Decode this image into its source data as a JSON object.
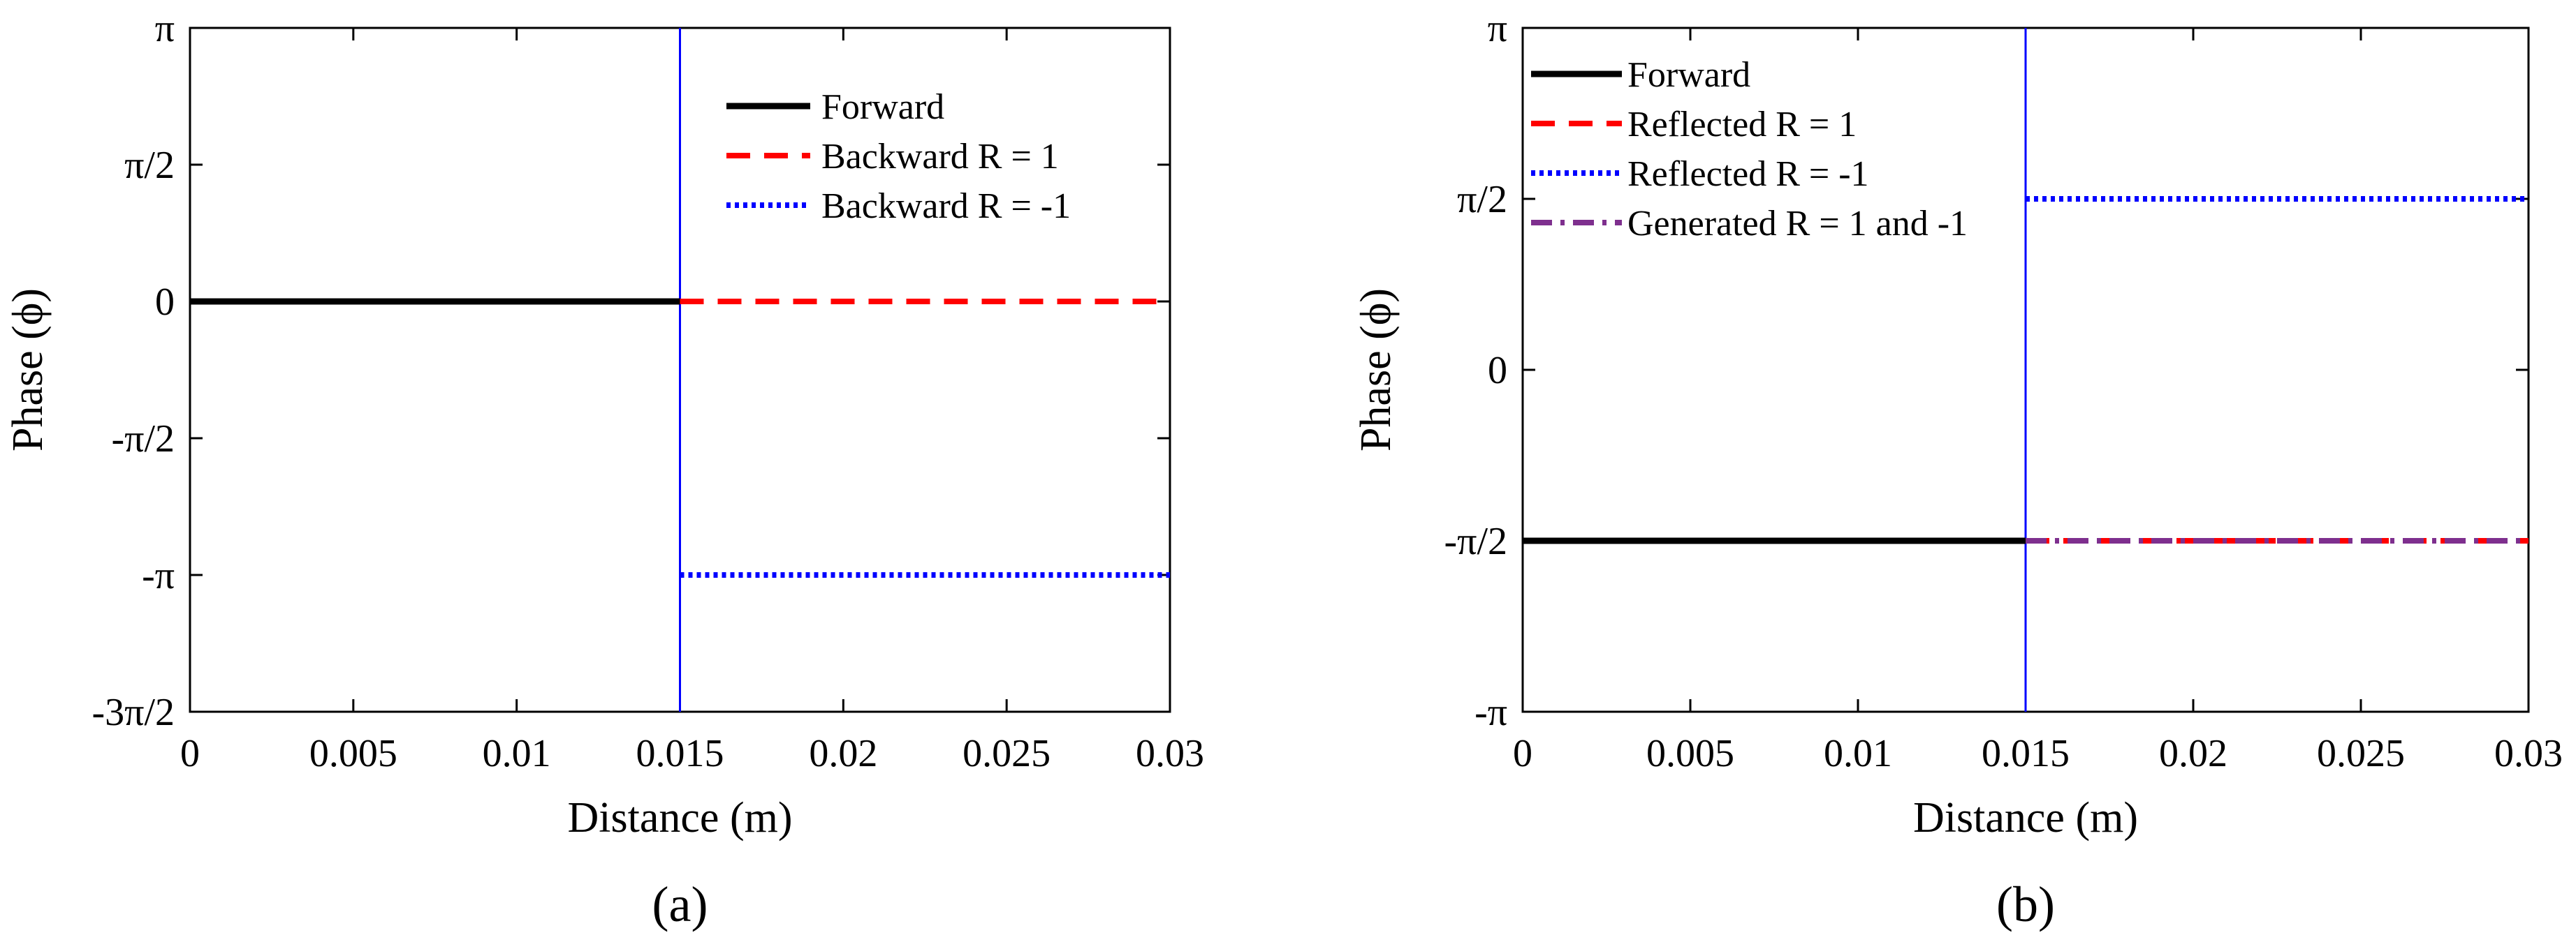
{
  "chart_data": [
    {
      "type": "line",
      "panel_label": "(a)",
      "xlabel": "Distance (m)",
      "ylabel": "Phase (ϕ)",
      "xlim": [
        0,
        0.03
      ],
      "ylim": [
        -4.71239,
        3.14159
      ],
      "x_ticks": [
        {
          "value": 0,
          "label": "0"
        },
        {
          "value": 0.005,
          "label": "0.005"
        },
        {
          "value": 0.01,
          "label": "0.01"
        },
        {
          "value": 0.015,
          "label": "0.015"
        },
        {
          "value": 0.02,
          "label": "0.02"
        },
        {
          "value": 0.025,
          "label": "0.025"
        },
        {
          "value": 0.03,
          "label": "0.03"
        }
      ],
      "y_ticks": [
        {
          "value": -4.71239,
          "label": "-3π/2"
        },
        {
          "value": -3.14159,
          "label": "-π"
        },
        {
          "value": -1.5708,
          "label": "-π/2"
        },
        {
          "value": 0,
          "label": "0"
        },
        {
          "value": 1.5708,
          "label": "π/2"
        },
        {
          "value": 3.14159,
          "label": "π"
        }
      ],
      "boundary_x": 0.015,
      "boundary_color": "#0000ff",
      "legend_position": "top-right",
      "series": [
        {
          "name": "Forward",
          "x": [
            0,
            0.015
          ],
          "y": [
            0,
            0
          ],
          "color": "#000000",
          "style": "solid"
        },
        {
          "name": "Backward R = 1",
          "x": [
            0.015,
            0.03
          ],
          "y": [
            0,
            0
          ],
          "color": "#ff0000",
          "style": "dashed"
        },
        {
          "name": "Backward R = -1",
          "x": [
            0.015,
            0.03
          ],
          "y": [
            -3.14159,
            -3.14159
          ],
          "color": "#0000ff",
          "style": "dotted"
        }
      ]
    },
    {
      "type": "line",
      "panel_label": "(b)",
      "xlabel": "Distance (m)",
      "ylabel": "Phase (ϕ)",
      "xlim": [
        0,
        0.03
      ],
      "ylim": [
        -3.14159,
        3.14159
      ],
      "x_ticks": [
        {
          "value": 0,
          "label": "0"
        },
        {
          "value": 0.005,
          "label": "0.005"
        },
        {
          "value": 0.01,
          "label": "0.01"
        },
        {
          "value": 0.015,
          "label": "0.015"
        },
        {
          "value": 0.02,
          "label": "0.02"
        },
        {
          "value": 0.025,
          "label": "0.025"
        },
        {
          "value": 0.03,
          "label": "0.03"
        }
      ],
      "y_ticks": [
        {
          "value": -3.14159,
          "label": "-π"
        },
        {
          "value": -1.5708,
          "label": "-π/2"
        },
        {
          "value": 0,
          "label": "0"
        },
        {
          "value": 1.5708,
          "label": "π/2"
        },
        {
          "value": 3.14159,
          "label": "π"
        }
      ],
      "boundary_x": 0.015,
      "boundary_color": "#0000ff",
      "legend_position": "top-left",
      "series": [
        {
          "name": "Forward",
          "x": [
            0,
            0.015
          ],
          "y": [
            -1.5708,
            -1.5708
          ],
          "color": "#000000",
          "style": "solid"
        },
        {
          "name": "Reflected R = 1",
          "x": [
            0.015,
            0.03
          ],
          "y": [
            -1.5708,
            -1.5708
          ],
          "color": "#ff0000",
          "style": "dashed"
        },
        {
          "name": "Reflected R = -1",
          "x": [
            0.015,
            0.03
          ],
          "y": [
            1.5708,
            1.5708
          ],
          "color": "#0000ff",
          "style": "dotted"
        },
        {
          "name": "Generated R = 1 and -1",
          "x": [
            0.015,
            0.03
          ],
          "y": [
            -1.5708,
            -1.5708
          ],
          "color": "#7e2f8e",
          "style": "dashdot"
        }
      ]
    }
  ]
}
